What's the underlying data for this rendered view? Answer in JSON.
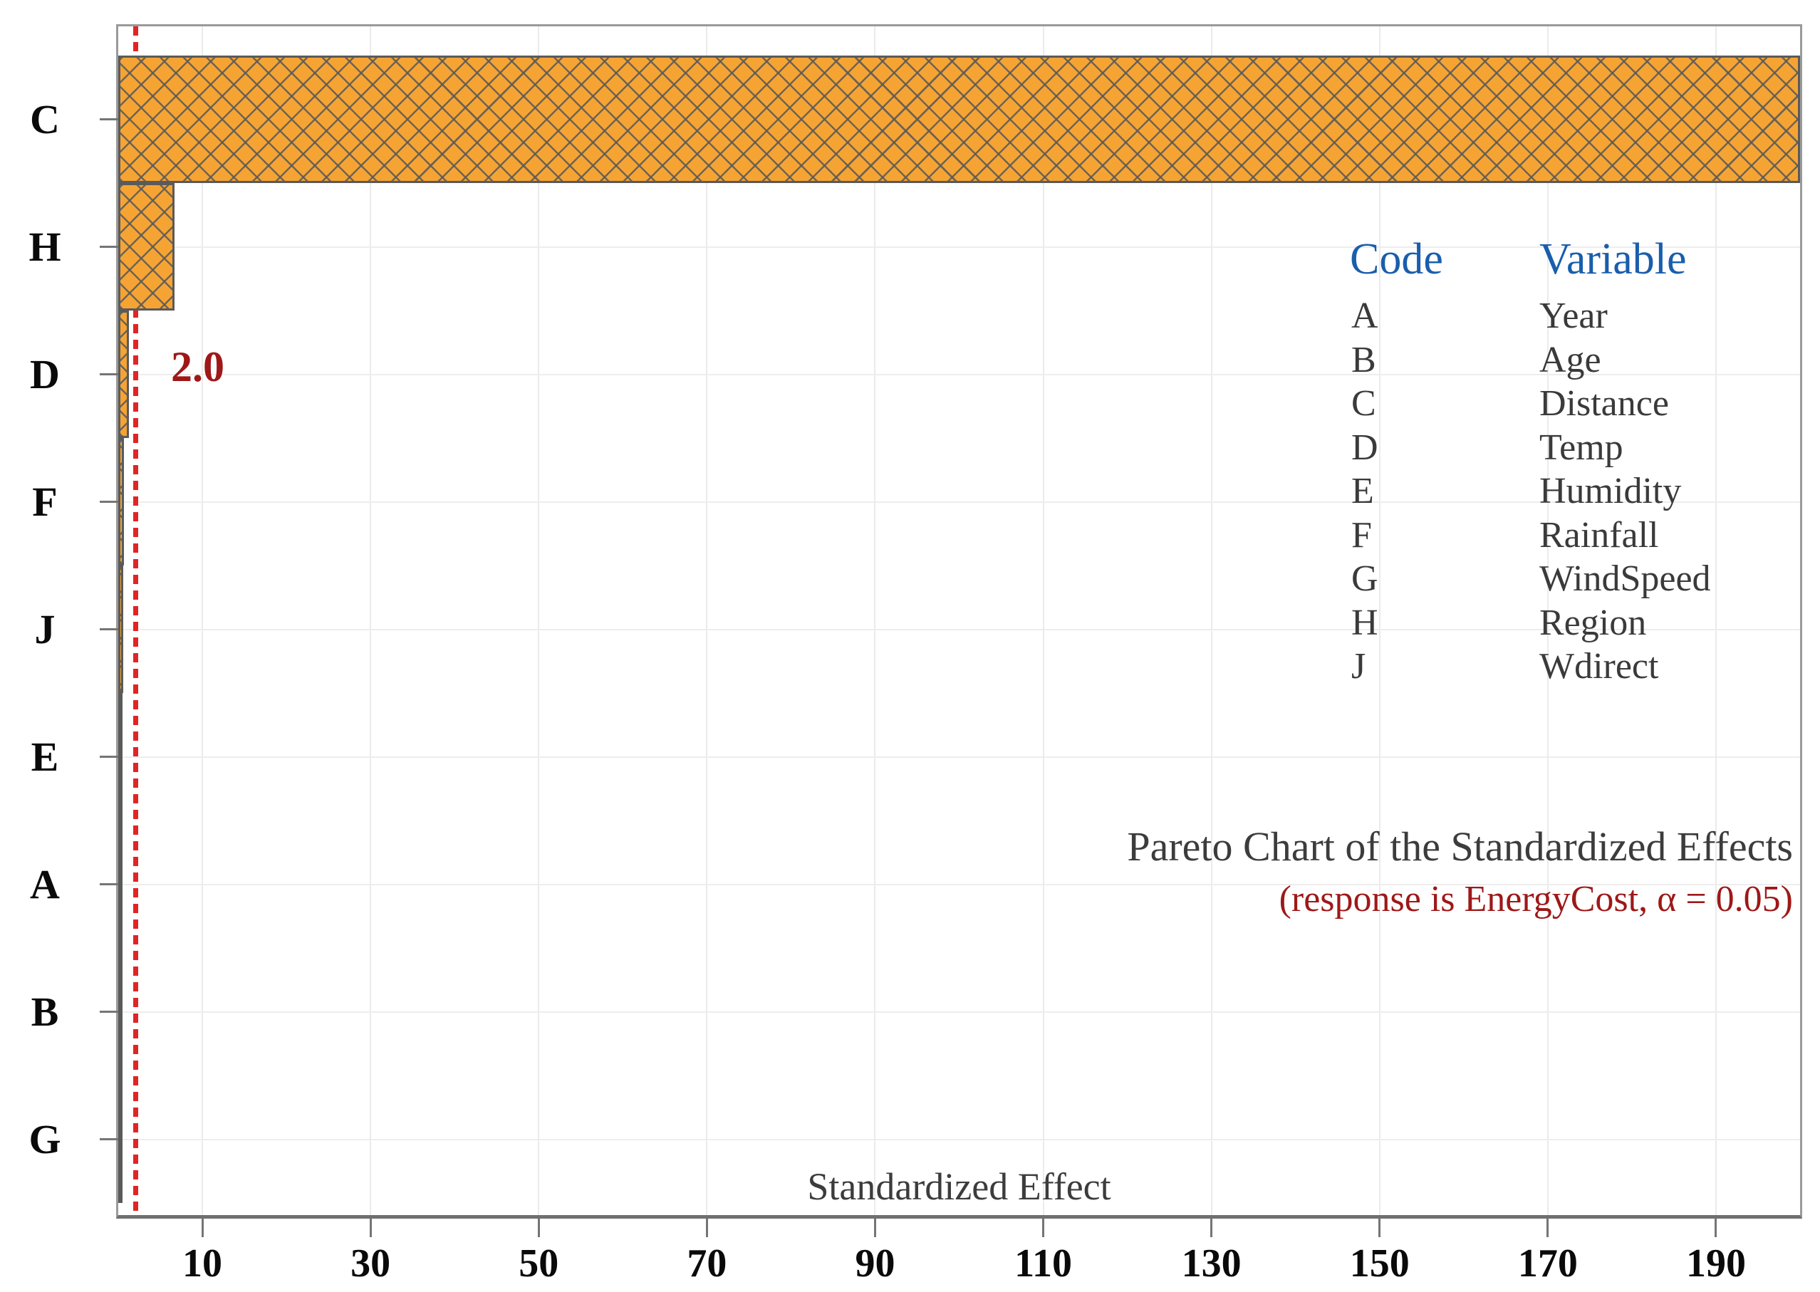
{
  "chart_data": {
    "type": "bar",
    "orientation": "horizontal",
    "title": "Pareto Chart of the Standardized Effects",
    "subtitle": "(response is EnergyCost, α = 0.05)",
    "xlabel": "Standardized Effect",
    "categories": [
      "C",
      "H",
      "D",
      "F",
      "J",
      "E",
      "A",
      "B",
      "G"
    ],
    "values": [
      200,
      6.7,
      1.3,
      0.7,
      0.6,
      0.55,
      0.5,
      0.3,
      0.12
    ],
    "xlim": [
      0,
      200
    ],
    "xticks": [
      10,
      30,
      50,
      70,
      90,
      110,
      130,
      150,
      170,
      190
    ],
    "grid": true,
    "legend_position": "upper-right-inside",
    "hatch": "diagonal-crosshatch",
    "reference_line": {
      "value": 2.0,
      "label": "2.0"
    },
    "legend": {
      "headers": {
        "code": "Code",
        "variable": "Variable"
      },
      "rows": [
        {
          "code": "A",
          "variable": "Year"
        },
        {
          "code": "B",
          "variable": "Age"
        },
        {
          "code": "C",
          "variable": "Distance"
        },
        {
          "code": "D",
          "variable": "Temp"
        },
        {
          "code": "E",
          "variable": "Humidity"
        },
        {
          "code": "F",
          "variable": "Rainfall"
        },
        {
          "code": "G",
          "variable": "WindSpeed"
        },
        {
          "code": "H",
          "variable": "Region"
        },
        {
          "code": "J",
          "variable": "Wdirect"
        }
      ]
    },
    "colors": {
      "bar_fill": "#F5A434",
      "bar_border": "#5A5A5A",
      "reference_line": "#E02525",
      "reference_label": "#9E1818",
      "subtitle": "#9E1818",
      "legend_header": "#1A5EAC",
      "text": "#3C3C3C",
      "tick_label": "#0A0A0A",
      "grid": "#EBEBEB",
      "axis": "#6F6F6F"
    }
  }
}
